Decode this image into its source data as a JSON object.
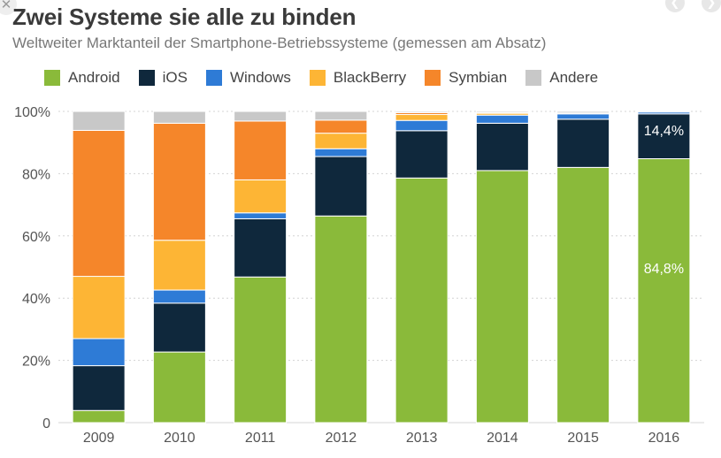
{
  "header": {
    "title": "Zwei Systeme sie alle zu binden",
    "subtitle": "Weltweiter Marktanteil der Smartphone-Betriebssysteme (gemessen am Absatz)"
  },
  "controls": {
    "close_icon": "close-icon",
    "prev_icon": "chevron-left-icon",
    "next_icon": "chevron-right-icon"
  },
  "chart_data": {
    "type": "bar",
    "stacked": true,
    "title": "Zwei Systeme sie alle zu binden",
    "subtitle": "Weltweiter Marktanteil der Smartphone-Betriebssysteme (gemessen am Absatz)",
    "xlabel": "",
    "ylabel": "",
    "ylim": [
      0,
      100
    ],
    "yticks": [
      "0",
      "20%",
      "40%",
      "60%",
      "80%",
      "100%"
    ],
    "ytick_values": [
      0,
      20,
      40,
      60,
      80,
      100
    ],
    "grid": true,
    "legend_position": "top",
    "categories": [
      "2009",
      "2010",
      "2011",
      "2012",
      "2013",
      "2014",
      "2015",
      "2016"
    ],
    "series": [
      {
        "name": "Android",
        "color": "#8aba3a",
        "values": [
          3.9,
          22.7,
          46.8,
          66.4,
          78.6,
          81.0,
          82.0,
          84.8
        ]
      },
      {
        "name": "iOS",
        "color": "#0f283c",
        "values": [
          14.4,
          15.7,
          18.7,
          19.1,
          15.2,
          15.2,
          15.5,
          14.4
        ]
      },
      {
        "name": "Windows",
        "color": "#2e7bd6",
        "values": [
          8.7,
          4.2,
          1.9,
          2.5,
          3.3,
          2.6,
          1.7,
          0.6
        ]
      },
      {
        "name": "BlackBerry",
        "color": "#fdb535",
        "values": [
          20.0,
          16.0,
          10.6,
          5.0,
          1.9,
          0.6,
          0.3,
          0.1
        ]
      },
      {
        "name": "Symbian",
        "color": "#f5862a",
        "values": [
          46.9,
          37.6,
          18.9,
          4.2,
          0.6,
          0.2,
          0.0,
          0.0
        ]
      },
      {
        "name": "Andere",
        "color": "#c8c8c8",
        "values": [
          6.1,
          3.8,
          3.1,
          2.8,
          0.4,
          0.4,
          0.5,
          0.1
        ]
      }
    ],
    "annotations": [
      {
        "category": "2016",
        "series": "iOS",
        "text": "14,4%"
      },
      {
        "category": "2016",
        "series": "Android",
        "text": "84,8%"
      }
    ]
  }
}
